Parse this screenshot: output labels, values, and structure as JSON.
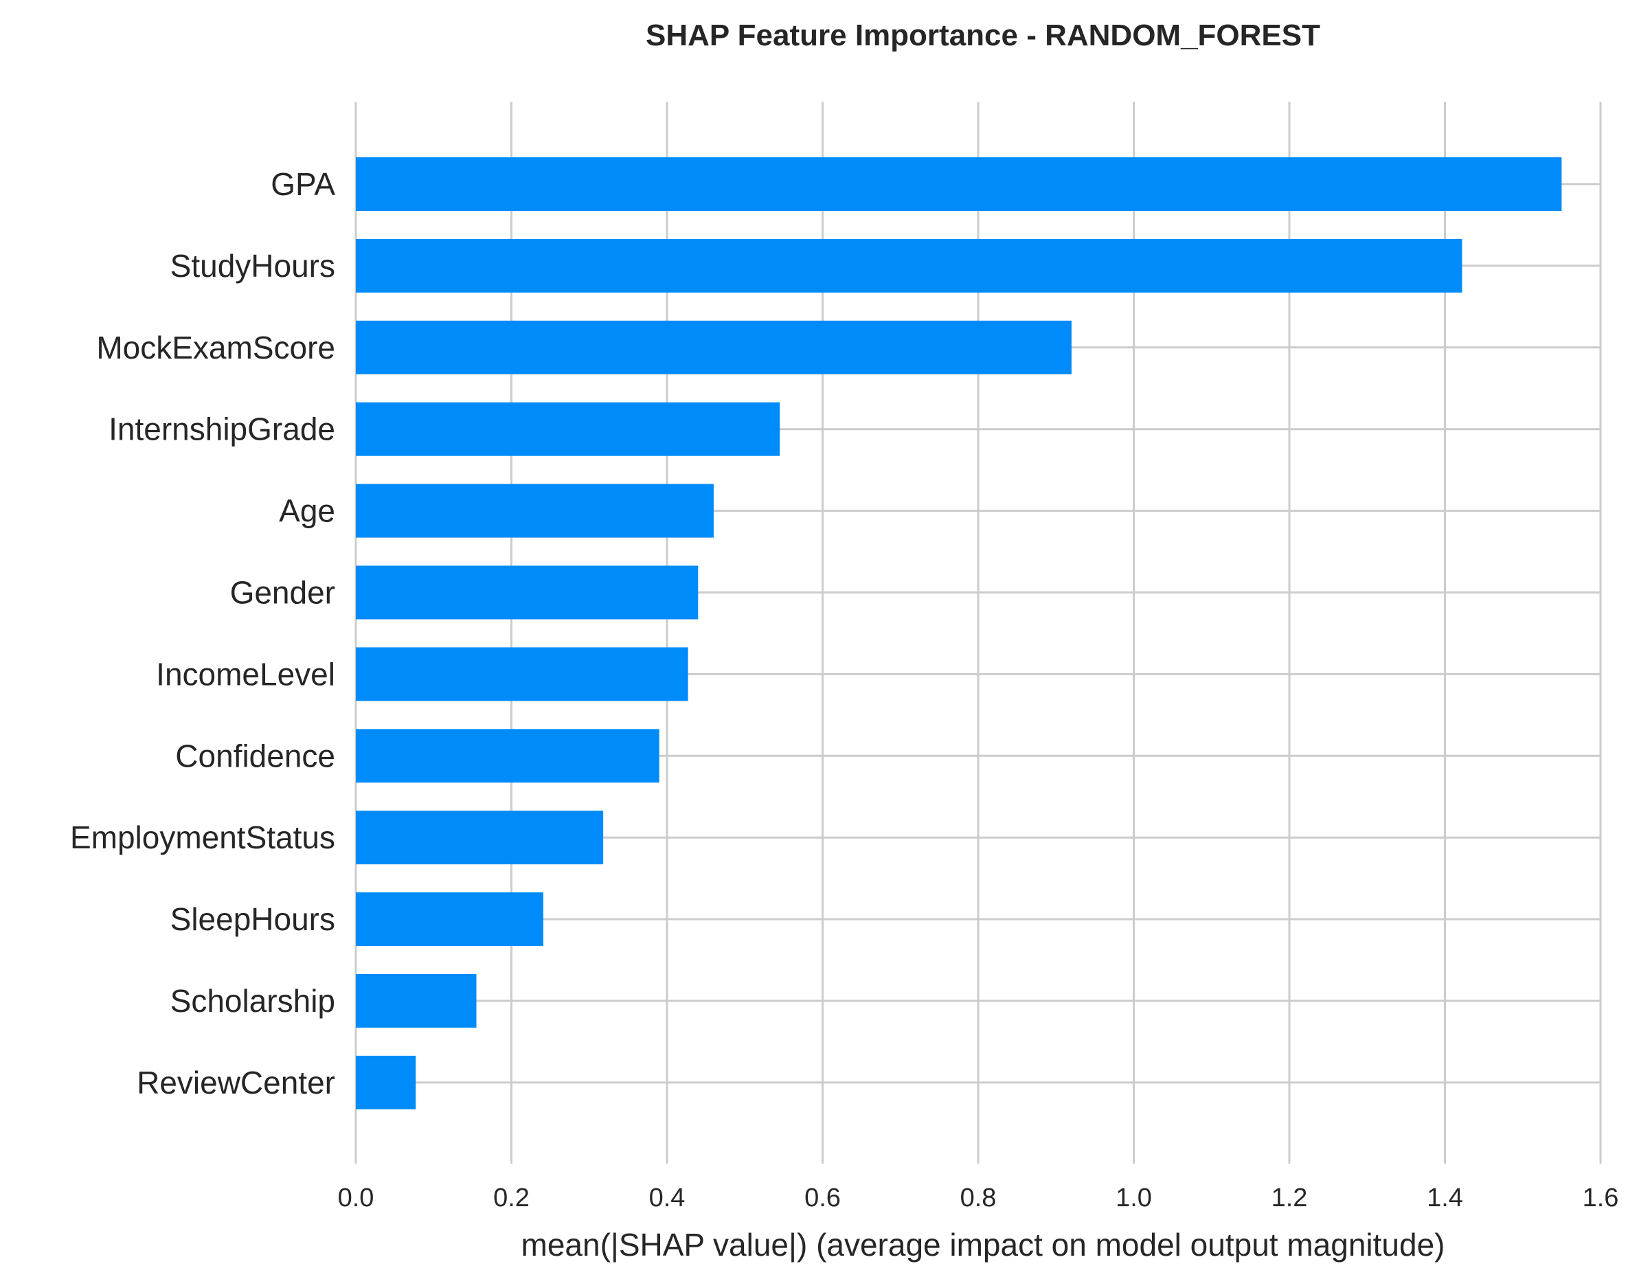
{
  "chart_data": {
    "type": "bar",
    "orientation": "horizontal",
    "title": "SHAP Feature Importance - RANDOM_FOREST",
    "xlabel": "mean(|SHAP value|) (average impact on model output magnitude)",
    "ylabel": "",
    "categories": [
      "GPA",
      "StudyHours",
      "MockExamScore",
      "InternshipGrade",
      "Age",
      "Gender",
      "IncomeLevel",
      "Confidence",
      "EmploymentStatus",
      "SleepHours",
      "Scholarship",
      "ReviewCenter"
    ],
    "values": [
      1.55,
      1.422,
      0.92,
      0.545,
      0.46,
      0.44,
      0.427,
      0.39,
      0.318,
      0.241,
      0.155,
      0.077
    ],
    "xlim": [
      0,
      1.6
    ],
    "xticks": [
      "0.0",
      "0.2",
      "0.4",
      "0.6",
      "0.8",
      "1.0",
      "1.2",
      "1.4",
      "1.6"
    ],
    "grid": true,
    "bar_color": "#008bfb",
    "grid_color": "#cccccc"
  }
}
